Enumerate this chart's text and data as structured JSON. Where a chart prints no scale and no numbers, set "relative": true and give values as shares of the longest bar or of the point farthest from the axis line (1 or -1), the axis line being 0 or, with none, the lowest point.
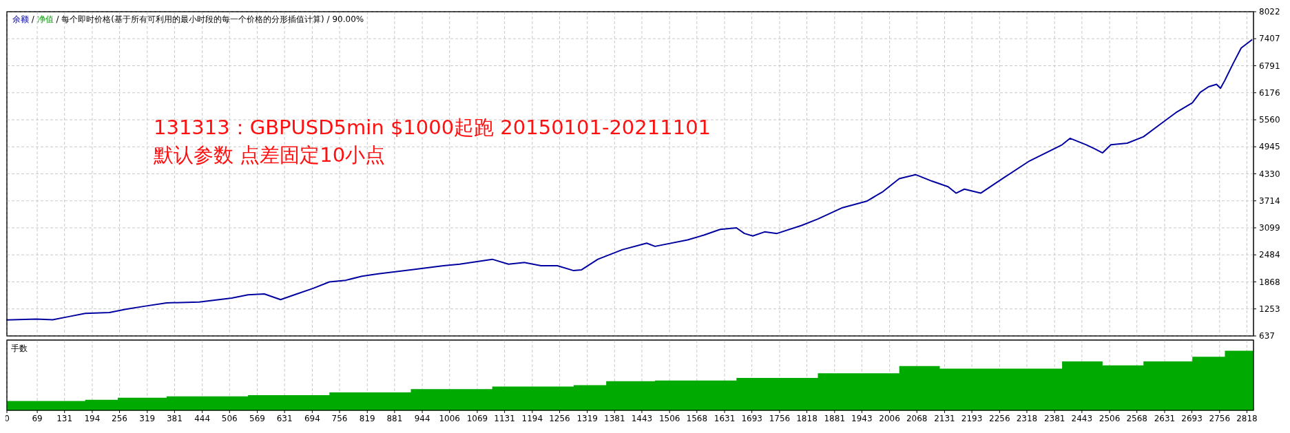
{
  "chart_data": [
    {
      "type": "line",
      "title": "131313：GBPUSD5min $1000起跑 20150101-20211101",
      "subtitle": "默认参数 点差固定10小点",
      "annotations": [
        "/",
        "净值",
        "/",
        "每个即时价格(基于所有可利用的最小时段的每一个价格的分形插值计算)",
        "/",
        "90.00%"
      ],
      "legend": "top left",
      "grid": true,
      "tick_labels": "y",
      "xlim": [
        0,
        2833
      ],
      "xticks": [
        0,
        69,
        131,
        194,
        256,
        319,
        381,
        444,
        506,
        569,
        631,
        694,
        756,
        819,
        881,
        944,
        1006,
        1069,
        1131,
        1194,
        1256,
        1319,
        1381,
        1443,
        1506,
        1568,
        1631,
        1693,
        1756,
        1818,
        1881,
        1943,
        2006,
        2068,
        2131,
        2193,
        2256,
        2318,
        2381,
        2443,
        2506,
        2568,
        2631,
        2693,
        2756,
        2818
      ],
      "ylim": [
        637,
        8022
      ],
      "yticks": [
        637,
        1253,
        1868,
        2484,
        3099,
        3714,
        4330,
        4945,
        5560,
        6176,
        6791,
        7407,
        8022
      ],
      "x": [
        0,
        67,
        104,
        141,
        178,
        233,
        270,
        315,
        363,
        437,
        511,
        548,
        585,
        622,
        659,
        696,
        733,
        770,
        807,
        844,
        918,
        992,
        1029,
        1103,
        1140,
        1177,
        1214,
        1251,
        1288,
        1306,
        1343,
        1399,
        1454,
        1473,
        1547,
        1584,
        1621,
        1658,
        1676,
        1695,
        1722,
        1750,
        1806,
        1843,
        1899,
        1954,
        1991,
        2028,
        2065,
        2102,
        2139,
        2157,
        2176,
        2213,
        2268,
        2324,
        2398,
        2416,
        2453,
        2472,
        2490,
        2509,
        2546,
        2583,
        2620,
        2657,
        2694,
        2712,
        2731,
        2749,
        2758,
        2768,
        2786,
        2805,
        2829
      ],
      "series": [
        {
          "name": "余额",
          "color": "#0000a0",
          "values": [
            1000,
            1023,
            1005,
            1078,
            1152,
            1170,
            1243,
            1317,
            1390,
            1409,
            1500,
            1574,
            1593,
            1464,
            1593,
            1721,
            1868,
            1905,
            1997,
            2052,
            2144,
            2236,
            2272,
            2383,
            2272,
            2309,
            2236,
            2236,
            2125,
            2144,
            2383,
            2603,
            2750,
            2677,
            2824,
            2934,
            3063,
            3099,
            2971,
            2915,
            3007,
            2971,
            3154,
            3301,
            3558,
            3705,
            3925,
            4219,
            4311,
            4164,
            4036,
            3889,
            3981,
            3889,
            4256,
            4623,
            4991,
            5138,
            4991,
            4899,
            4807,
            4991,
            5027,
            5174,
            5450,
            5726,
            5946,
            6185,
            6313,
            6368,
            6277,
            6460,
            6828,
            7195,
            7379
          ]
        }
      ]
    },
    {
      "type": "area",
      "title": "手数",
      "relative": true,
      "grid": "x",
      "tick_labels": "x",
      "xlim": [
        0,
        2833
      ],
      "xticks": [
        0,
        69,
        131,
        194,
        256,
        319,
        381,
        444,
        506,
        569,
        631,
        694,
        756,
        819,
        881,
        944,
        1006,
        1069,
        1131,
        1194,
        1256,
        1319,
        1381,
        1443,
        1506,
        1568,
        1631,
        1693,
        1756,
        1818,
        1881,
        1943,
        2006,
        2068,
        2131,
        2193,
        2256,
        2318,
        2381,
        2443,
        2506,
        2568,
        2631,
        2693,
        2756,
        2818
      ],
      "x": [
        0,
        178,
        252,
        363,
        548,
        733,
        918,
        1103,
        1288,
        1362,
        1473,
        1658,
        1843,
        2028,
        2120,
        2213,
        2398,
        2490,
        2583,
        2694,
        2768,
        2833
      ],
      "series": [
        {
          "color": "#00aa00",
          "values": [
            0.14,
            0.16,
            0.19,
            0.21,
            0.23,
            0.27,
            0.32,
            0.36,
            0.38,
            0.44,
            0.45,
            0.49,
            0.56,
            0.67,
            0.63,
            0.63,
            0.74,
            0.68,
            0.74,
            0.81,
            0.9,
            1
          ]
        }
      ]
    }
  ]
}
